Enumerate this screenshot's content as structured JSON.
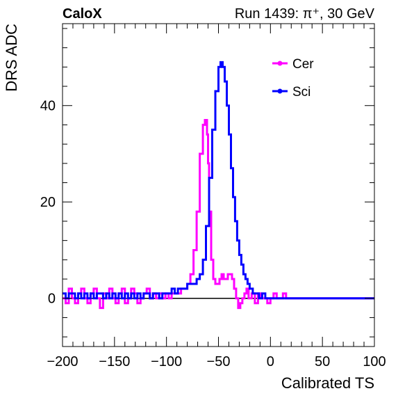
{
  "header": {
    "left_label": "CaloX",
    "right_label": "Run 1439:   π⁺, 30 GeV"
  },
  "chart_data": {
    "type": "line",
    "xlabel": "Calibrated TS",
    "ylabel": "DRS ADC",
    "xlim": [
      -200,
      100
    ],
    "ylim": [
      -10,
      57
    ],
    "x_ticks": [
      -200,
      -150,
      -100,
      -50,
      0,
      50,
      100
    ],
    "x_tick_labels": [
      "−200",
      "−150",
      "−100",
      "−50",
      "0",
      "50",
      "100"
    ],
    "y_ticks": [
      0,
      20,
      40
    ],
    "y_tick_labels": [
      "0",
      "20",
      "40"
    ],
    "grid": false,
    "baseline_y": 0,
    "legend_position": "top-right",
    "series": [
      {
        "name": "Cer",
        "color": "#ff00ff",
        "x": [
          -200,
          -197,
          -194,
          -191,
          -188,
          -185,
          -182,
          -179,
          -176,
          -173,
          -170,
          -167,
          -164,
          -161,
          -158,
          -155,
          -152,
          -149,
          -146,
          -143,
          -140,
          -137,
          -134,
          -131,
          -128,
          -125,
          -122,
          -119,
          -116,
          -113,
          -110,
          -107,
          -104,
          -101,
          -98,
          -95,
          -92,
          -89,
          -86,
          -83,
          -80,
          -77,
          -74,
          -71,
          -68,
          -65,
          -63,
          -61,
          -60,
          -59,
          -57,
          -55,
          -53,
          -51,
          -49,
          -47,
          -45,
          -43,
          -41,
          -39,
          -37,
          -35,
          -33,
          -31,
          -29,
          -27,
          -25,
          -23,
          -21,
          -18,
          -15,
          -12,
          -9,
          -6,
          -3,
          0,
          3,
          6,
          9,
          12,
          15,
          20,
          25,
          30,
          35,
          40,
          45,
          50,
          55,
          60,
          65,
          70,
          75,
          80,
          85,
          90,
          95,
          100
        ],
        "y": [
          0,
          -1,
          2,
          0,
          -1,
          1,
          2,
          0,
          -1,
          1,
          2,
          0,
          -2,
          1,
          0,
          2,
          0,
          -1,
          1,
          2,
          -1,
          0,
          2,
          1,
          -1,
          0,
          1,
          2,
          0,
          1,
          0,
          1,
          0,
          1,
          0,
          1,
          1,
          1,
          2,
          2,
          3,
          5,
          10,
          18,
          30,
          36,
          37,
          34,
          28,
          18,
          8,
          4,
          3,
          3,
          4,
          5,
          4,
          4,
          5,
          5,
          4,
          2,
          0,
          -2,
          -1,
          0,
          1,
          2,
          0,
          1,
          -1,
          1,
          0,
          0,
          -1,
          0,
          1,
          0,
          0,
          1,
          0,
          0,
          0,
          0,
          0,
          0,
          0,
          0,
          0,
          0,
          0,
          0,
          0,
          0,
          0,
          0,
          0,
          0
        ]
      },
      {
        "name": "Sci",
        "color": "#0000ff",
        "x": [
          -200,
          -197,
          -194,
          -191,
          -188,
          -185,
          -182,
          -179,
          -176,
          -173,
          -170,
          -167,
          -164,
          -161,
          -158,
          -155,
          -152,
          -149,
          -146,
          -143,
          -140,
          -137,
          -134,
          -131,
          -128,
          -125,
          -122,
          -119,
          -116,
          -113,
          -110,
          -107,
          -104,
          -101,
          -98,
          -95,
          -92,
          -89,
          -86,
          -83,
          -80,
          -77,
          -74,
          -71,
          -68,
          -65,
          -62,
          -59,
          -56,
          -53,
          -50,
          -48,
          -46,
          -44,
          -42,
          -40,
          -38,
          -36,
          -34,
          -32,
          -30,
          -28,
          -26,
          -24,
          -22,
          -20,
          -17,
          -14,
          -11,
          -8,
          -5,
          -2,
          1,
          4,
          7,
          10,
          13,
          16,
          20,
          25,
          30,
          35,
          40,
          45,
          50,
          55,
          60,
          65,
          70,
          75,
          80,
          85,
          90,
          95,
          100
        ],
        "y": [
          1,
          0,
          1,
          1,
          0,
          1,
          0,
          1,
          0,
          1,
          0,
          1,
          1,
          0,
          1,
          0,
          1,
          0,
          1,
          0,
          1,
          0,
          1,
          0,
          1,
          0,
          1,
          1,
          0,
          1,
          1,
          0,
          1,
          1,
          1,
          2,
          1,
          2,
          2,
          2,
          3,
          3,
          3,
          4,
          5,
          8,
          15,
          25,
          35,
          43,
          48,
          49,
          48,
          45,
          40,
          34,
          27,
          21,
          16,
          12,
          9,
          7,
          5,
          4,
          3,
          2,
          1,
          1,
          0,
          1,
          0,
          0,
          0,
          0,
          0,
          0,
          0,
          0,
          0,
          0,
          0,
          0,
          0,
          0,
          0,
          0,
          0,
          0,
          0,
          0,
          0,
          0,
          0,
          0,
          0
        ]
      }
    ]
  }
}
